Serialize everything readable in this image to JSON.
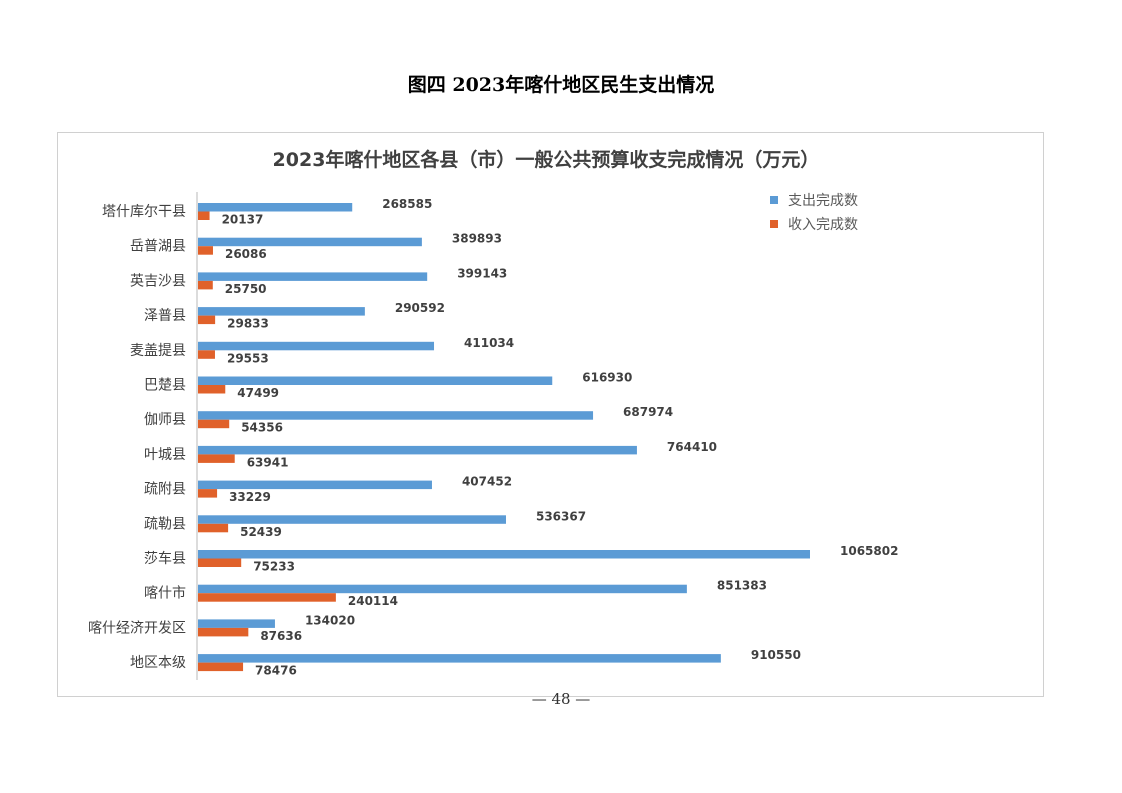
{
  "document": {
    "figure_title": "图四  2023年喀什地区民生支出情况",
    "page_number": "— 48 —"
  },
  "chart_data": {
    "type": "bar",
    "orientation": "horizontal",
    "title": "2023年喀什地区各县（市）一般公共预算收支完成情况（万元）",
    "xlabel": "",
    "ylabel": "",
    "xlim": [
      0,
      1100000
    ],
    "grid": false,
    "legend_position": "top-right",
    "categories": [
      "塔什库尔干县",
      "岳普湖县",
      "英吉沙县",
      "泽普县",
      "麦盖提县",
      "巴楚县",
      "伽师县",
      "叶城县",
      "疏附县",
      "疏勒县",
      "莎车县",
      "喀什市",
      "喀什经济开发区",
      "地区本级"
    ],
    "series": [
      {
        "name": "支出完成数",
        "color": "#5b9bd5",
        "values": [
          268585,
          389893,
          399143,
          290592,
          411034,
          616930,
          687974,
          764410,
          407452,
          536367,
          1065802,
          851383,
          134020,
          910550
        ]
      },
      {
        "name": "收入完成数",
        "color": "#e0612a",
        "values": [
          20137,
          26086,
          25750,
          29833,
          29553,
          47499,
          54356,
          63941,
          33229,
          52439,
          75233,
          240114,
          87636,
          78476
        ]
      }
    ]
  }
}
